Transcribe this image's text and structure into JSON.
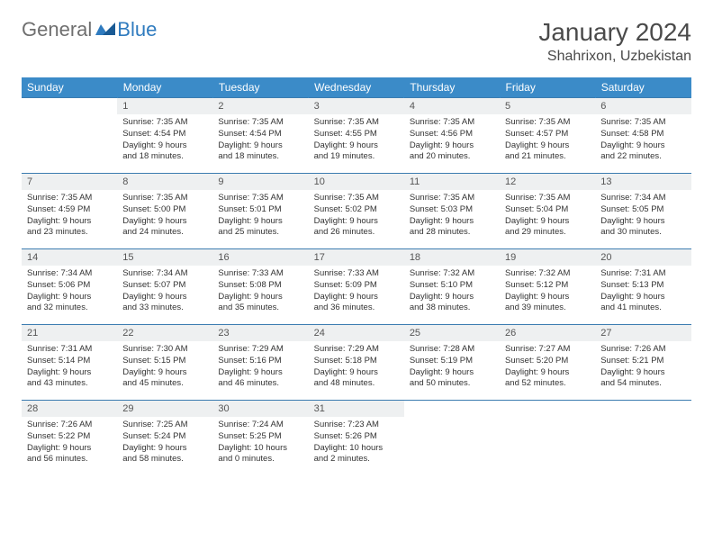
{
  "brand": {
    "general": "General",
    "blue": "Blue"
  },
  "title": {
    "month": "January 2024",
    "location": "Shahrixon, Uzbekistan"
  },
  "colors": {
    "header_bg": "#3b8bc8",
    "header_text": "#ffffff",
    "daynum_bg": "#eef0f1",
    "border": "#3b7cb0",
    "brand_gray": "#6f6f6f",
    "brand_blue": "#2f7bbf"
  },
  "dow": [
    "Sunday",
    "Monday",
    "Tuesday",
    "Wednesday",
    "Thursday",
    "Friday",
    "Saturday"
  ],
  "weeks": [
    [
      {
        "n": "",
        "lines": []
      },
      {
        "n": "1",
        "lines": [
          "Sunrise: 7:35 AM",
          "Sunset: 4:54 PM",
          "Daylight: 9 hours",
          "and 18 minutes."
        ]
      },
      {
        "n": "2",
        "lines": [
          "Sunrise: 7:35 AM",
          "Sunset: 4:54 PM",
          "Daylight: 9 hours",
          "and 18 minutes."
        ]
      },
      {
        "n": "3",
        "lines": [
          "Sunrise: 7:35 AM",
          "Sunset: 4:55 PM",
          "Daylight: 9 hours",
          "and 19 minutes."
        ]
      },
      {
        "n": "4",
        "lines": [
          "Sunrise: 7:35 AM",
          "Sunset: 4:56 PM",
          "Daylight: 9 hours",
          "and 20 minutes."
        ]
      },
      {
        "n": "5",
        "lines": [
          "Sunrise: 7:35 AM",
          "Sunset: 4:57 PM",
          "Daylight: 9 hours",
          "and 21 minutes."
        ]
      },
      {
        "n": "6",
        "lines": [
          "Sunrise: 7:35 AM",
          "Sunset: 4:58 PM",
          "Daylight: 9 hours",
          "and 22 minutes."
        ]
      }
    ],
    [
      {
        "n": "7",
        "lines": [
          "Sunrise: 7:35 AM",
          "Sunset: 4:59 PM",
          "Daylight: 9 hours",
          "and 23 minutes."
        ]
      },
      {
        "n": "8",
        "lines": [
          "Sunrise: 7:35 AM",
          "Sunset: 5:00 PM",
          "Daylight: 9 hours",
          "and 24 minutes."
        ]
      },
      {
        "n": "9",
        "lines": [
          "Sunrise: 7:35 AM",
          "Sunset: 5:01 PM",
          "Daylight: 9 hours",
          "and 25 minutes."
        ]
      },
      {
        "n": "10",
        "lines": [
          "Sunrise: 7:35 AM",
          "Sunset: 5:02 PM",
          "Daylight: 9 hours",
          "and 26 minutes."
        ]
      },
      {
        "n": "11",
        "lines": [
          "Sunrise: 7:35 AM",
          "Sunset: 5:03 PM",
          "Daylight: 9 hours",
          "and 28 minutes."
        ]
      },
      {
        "n": "12",
        "lines": [
          "Sunrise: 7:35 AM",
          "Sunset: 5:04 PM",
          "Daylight: 9 hours",
          "and 29 minutes."
        ]
      },
      {
        "n": "13",
        "lines": [
          "Sunrise: 7:34 AM",
          "Sunset: 5:05 PM",
          "Daylight: 9 hours",
          "and 30 minutes."
        ]
      }
    ],
    [
      {
        "n": "14",
        "lines": [
          "Sunrise: 7:34 AM",
          "Sunset: 5:06 PM",
          "Daylight: 9 hours",
          "and 32 minutes."
        ]
      },
      {
        "n": "15",
        "lines": [
          "Sunrise: 7:34 AM",
          "Sunset: 5:07 PM",
          "Daylight: 9 hours",
          "and 33 minutes."
        ]
      },
      {
        "n": "16",
        "lines": [
          "Sunrise: 7:33 AM",
          "Sunset: 5:08 PM",
          "Daylight: 9 hours",
          "and 35 minutes."
        ]
      },
      {
        "n": "17",
        "lines": [
          "Sunrise: 7:33 AM",
          "Sunset: 5:09 PM",
          "Daylight: 9 hours",
          "and 36 minutes."
        ]
      },
      {
        "n": "18",
        "lines": [
          "Sunrise: 7:32 AM",
          "Sunset: 5:10 PM",
          "Daylight: 9 hours",
          "and 38 minutes."
        ]
      },
      {
        "n": "19",
        "lines": [
          "Sunrise: 7:32 AM",
          "Sunset: 5:12 PM",
          "Daylight: 9 hours",
          "and 39 minutes."
        ]
      },
      {
        "n": "20",
        "lines": [
          "Sunrise: 7:31 AM",
          "Sunset: 5:13 PM",
          "Daylight: 9 hours",
          "and 41 minutes."
        ]
      }
    ],
    [
      {
        "n": "21",
        "lines": [
          "Sunrise: 7:31 AM",
          "Sunset: 5:14 PM",
          "Daylight: 9 hours",
          "and 43 minutes."
        ]
      },
      {
        "n": "22",
        "lines": [
          "Sunrise: 7:30 AM",
          "Sunset: 5:15 PM",
          "Daylight: 9 hours",
          "and 45 minutes."
        ]
      },
      {
        "n": "23",
        "lines": [
          "Sunrise: 7:29 AM",
          "Sunset: 5:16 PM",
          "Daylight: 9 hours",
          "and 46 minutes."
        ]
      },
      {
        "n": "24",
        "lines": [
          "Sunrise: 7:29 AM",
          "Sunset: 5:18 PM",
          "Daylight: 9 hours",
          "and 48 minutes."
        ]
      },
      {
        "n": "25",
        "lines": [
          "Sunrise: 7:28 AM",
          "Sunset: 5:19 PM",
          "Daylight: 9 hours",
          "and 50 minutes."
        ]
      },
      {
        "n": "26",
        "lines": [
          "Sunrise: 7:27 AM",
          "Sunset: 5:20 PM",
          "Daylight: 9 hours",
          "and 52 minutes."
        ]
      },
      {
        "n": "27",
        "lines": [
          "Sunrise: 7:26 AM",
          "Sunset: 5:21 PM",
          "Daylight: 9 hours",
          "and 54 minutes."
        ]
      }
    ],
    [
      {
        "n": "28",
        "lines": [
          "Sunrise: 7:26 AM",
          "Sunset: 5:22 PM",
          "Daylight: 9 hours",
          "and 56 minutes."
        ]
      },
      {
        "n": "29",
        "lines": [
          "Sunrise: 7:25 AM",
          "Sunset: 5:24 PM",
          "Daylight: 9 hours",
          "and 58 minutes."
        ]
      },
      {
        "n": "30",
        "lines": [
          "Sunrise: 7:24 AM",
          "Sunset: 5:25 PM",
          "Daylight: 10 hours",
          "and 0 minutes."
        ]
      },
      {
        "n": "31",
        "lines": [
          "Sunrise: 7:23 AM",
          "Sunset: 5:26 PM",
          "Daylight: 10 hours",
          "and 2 minutes."
        ]
      },
      {
        "n": "",
        "lines": []
      },
      {
        "n": "",
        "lines": []
      },
      {
        "n": "",
        "lines": []
      }
    ]
  ]
}
